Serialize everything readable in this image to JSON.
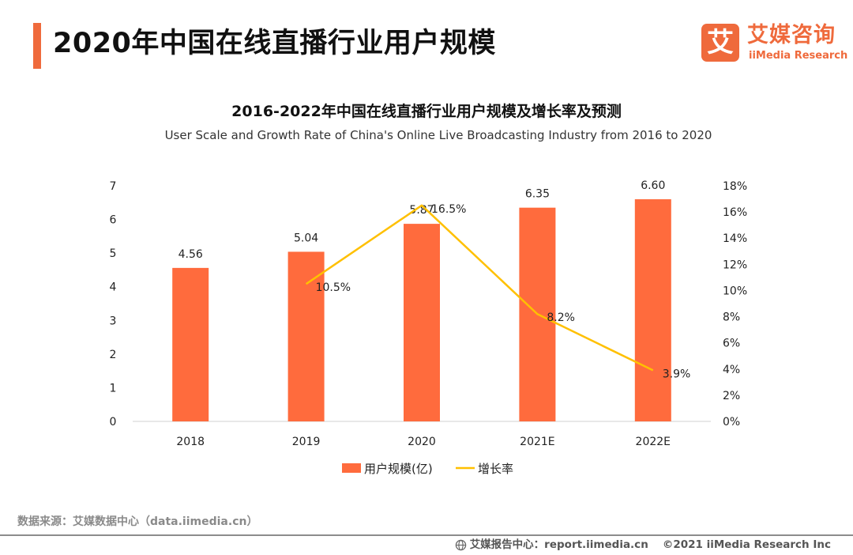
{
  "header": {
    "title": "2020年中国在线直播行业用户规模",
    "logo_mark": "艾",
    "logo_cn": "艾媒咨询",
    "logo_en": "iiMedia Research"
  },
  "chart_data": {
    "type": "bar",
    "title": "2016-2022年中国在线直播行业用户规模及增长率及预测",
    "subtitle": "User Scale and Growth Rate of China's Online Live Broadcasting Industry from 2016 to 2020",
    "categories": [
      "2018",
      "2019",
      "2020",
      "2021E",
      "2022E"
    ],
    "series": [
      {
        "name": "用户规模(亿)",
        "type": "bar",
        "axis": "left",
        "color": "#ff6b3d",
        "values": [
          4.56,
          5.04,
          5.87,
          6.35,
          6.6
        ],
        "labels": [
          "4.56",
          "5.04",
          "5.87",
          "6.35",
          "6.60"
        ]
      },
      {
        "name": "增长率",
        "type": "line",
        "axis": "right",
        "color": "#ffc000",
        "values": [
          null,
          10.5,
          16.5,
          8.2,
          3.9
        ],
        "labels": [
          "",
          "10.5%",
          "16.5%",
          "8.2%",
          "3.9%"
        ]
      }
    ],
    "y_left": {
      "min": 0,
      "max": 7,
      "ticks": [
        "0",
        "1",
        "2",
        "3",
        "4",
        "5",
        "6",
        "7"
      ]
    },
    "y_right": {
      "min": 0,
      "max": 18,
      "ticks": [
        "0%",
        "2%",
        "4%",
        "6%",
        "8%",
        "10%",
        "12%",
        "14%",
        "16%",
        "18%"
      ]
    },
    "grid": false,
    "legend": "bottom-center"
  },
  "footer": {
    "source": "数据来源：艾媒数据中心（data.iimedia.cn）",
    "report": "艾媒报告中心：report.iimedia.cn",
    "copyright": "©2021  iiMedia Research  Inc"
  }
}
